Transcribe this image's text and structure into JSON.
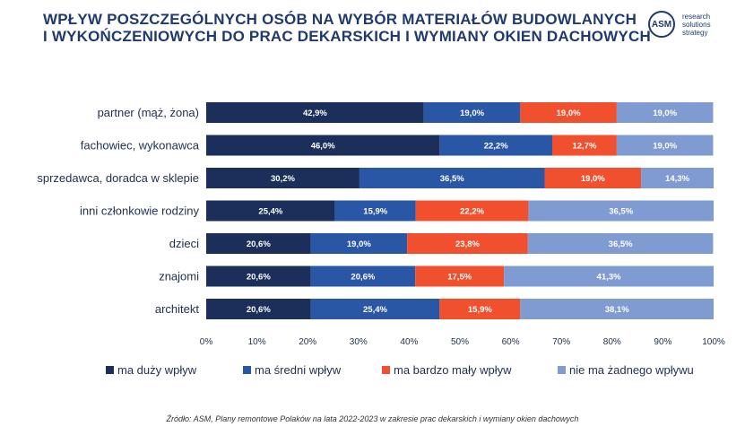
{
  "title_lines": [
    "WPŁYW POSZCZEGÓLNYCH OSÓB NA WYBÓR MATERIAŁÓW BUDOWLANYCH",
    "I WYKOŃCZENIOWYCH DO PRAC DEKARSKICH I WYMIANY OKIEN DACHOWYCH"
  ],
  "logo": {
    "mark": "ASM",
    "lines": [
      "research",
      "solutions",
      "strategy"
    ]
  },
  "source": "Źródło: ASM, Plany remontowe Polaków na lata 2022-2023 w zakresie prac dekarskich i wymiany okien dachowych",
  "colors": {
    "title": "#1f3a6e",
    "series": [
      "#1b2f5a",
      "#2a56a6",
      "#f0502d",
      "#7f9bd1"
    ]
  },
  "chart_data": {
    "type": "bar",
    "orientation": "horizontal",
    "stacked": true,
    "categories": [
      "partner (mąż, żona)",
      "fachowiec, wykonawca",
      "sprzedawca, doradca w sklepie",
      "inni członkowie rodziny",
      "dzieci",
      "znajomi",
      "architekt"
    ],
    "series": [
      {
        "name": "ma duży wpływ",
        "values": [
          42.9,
          46.0,
          30.2,
          25.4,
          20.6,
          20.6,
          20.6
        ],
        "labels": [
          "42,9%",
          "46,0%",
          "30,2%",
          "25,4%",
          "20,6%",
          "20,6%",
          "20,6%"
        ]
      },
      {
        "name": "ma średni wpływ",
        "values": [
          19.0,
          22.2,
          36.5,
          15.9,
          19.0,
          20.6,
          25.4
        ],
        "labels": [
          "19,0%",
          "22,2%",
          "36,5%",
          "15,9%",
          "19,0%",
          "20,6%",
          "25,4%"
        ]
      },
      {
        "name": "ma bardzo mały wpływ",
        "values": [
          19.0,
          12.7,
          19.0,
          22.2,
          23.8,
          17.5,
          15.9
        ],
        "labels": [
          "19,0%",
          "12,7%",
          "19,0%",
          "22,2%",
          "23,8%",
          "17,5%",
          "15,9%"
        ]
      },
      {
        "name": "nie ma żadnego wpływu",
        "values": [
          19.0,
          19.0,
          14.3,
          36.5,
          36.5,
          41.3,
          38.1
        ],
        "labels": [
          "19,0%",
          "19,0%",
          "14,3%",
          "36,5%",
          "36,5%",
          "41,3%",
          "38,1%"
        ]
      }
    ],
    "xticks": [
      "0%",
      "10%",
      "20%",
      "30%",
      "40%",
      "50%",
      "60%",
      "70%",
      "80%",
      "90%",
      "100%"
    ],
    "xlim": [
      0,
      100
    ],
    "grid": false,
    "legend_position": "bottom"
  }
}
